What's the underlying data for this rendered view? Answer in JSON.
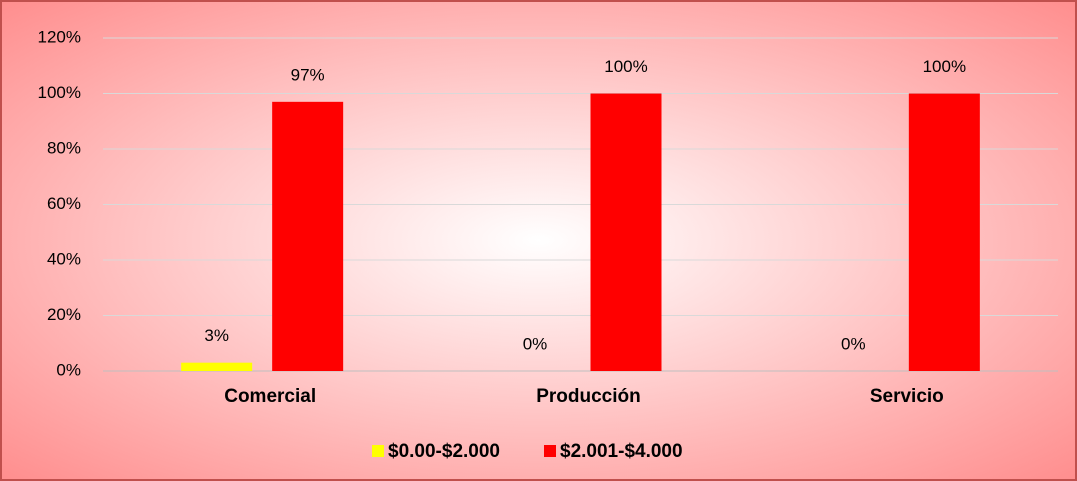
{
  "chart_data": {
    "type": "bar",
    "categories": [
      "Comercial",
      "Producción",
      "Servicio"
    ],
    "series": [
      {
        "name": "$0.00-$2.000",
        "color": "#ffff00",
        "values": [
          3,
          0,
          0
        ],
        "value_labels": [
          "3%",
          "0%",
          "0%"
        ]
      },
      {
        "name": "$2.001-$4.000",
        "color": "#ff0000",
        "values": [
          97,
          100,
          100
        ],
        "value_labels": [
          "97%",
          "100%",
          "100%"
        ]
      }
    ],
    "ylim": [
      0,
      120
    ],
    "yticks": [
      {
        "value": 0,
        "label": "0%"
      },
      {
        "value": 20,
        "label": "20%"
      },
      {
        "value": 40,
        "label": "40%"
      },
      {
        "value": 60,
        "label": "60%"
      },
      {
        "value": 80,
        "label": "80%"
      },
      {
        "value": 100,
        "label": "100%"
      },
      {
        "value": 120,
        "label": "120%"
      }
    ],
    "grid": true,
    "legend": "bottom"
  }
}
